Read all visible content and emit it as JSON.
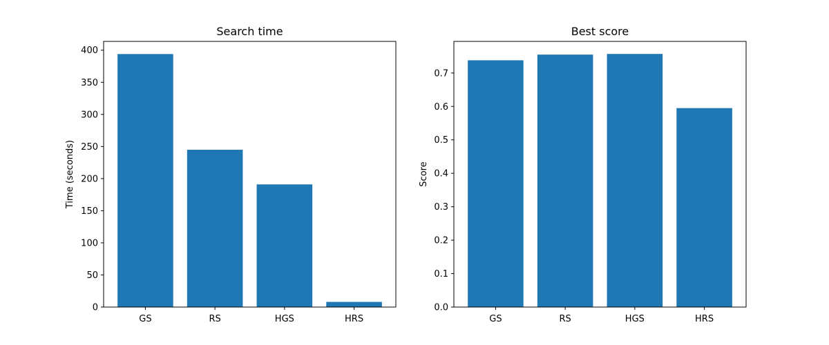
{
  "chart_data": [
    {
      "type": "bar",
      "title": "Search time",
      "xlabel": "",
      "ylabel": "Time (seconds)",
      "categories": [
        "GS",
        "RS",
        "HGS",
        "HRS"
      ],
      "values": [
        394,
        245,
        191,
        8
      ],
      "ylim": [
        0,
        413.7
      ],
      "yticks": [
        0,
        50,
        100,
        150,
        200,
        250,
        300,
        350,
        400
      ],
      "ytick_labels": [
        "0",
        "50",
        "100",
        "150",
        "200",
        "250",
        "300",
        "350",
        "400"
      ],
      "color": "#1f77b4",
      "grid": false
    },
    {
      "type": "bar",
      "title": "Best score",
      "xlabel": "",
      "ylabel": "Score",
      "categories": [
        "GS",
        "RS",
        "HGS",
        "HRS"
      ],
      "values": [
        0.738,
        0.755,
        0.757,
        0.595
      ],
      "ylim": [
        0,
        0.7945
      ],
      "yticks": [
        0.0,
        0.1,
        0.2,
        0.3,
        0.4,
        0.5,
        0.6,
        0.7
      ],
      "ytick_labels": [
        "0.0",
        "0.1",
        "0.2",
        "0.3",
        "0.4",
        "0.5",
        "0.6",
        "0.7"
      ],
      "color": "#1f77b4",
      "grid": false
    }
  ]
}
